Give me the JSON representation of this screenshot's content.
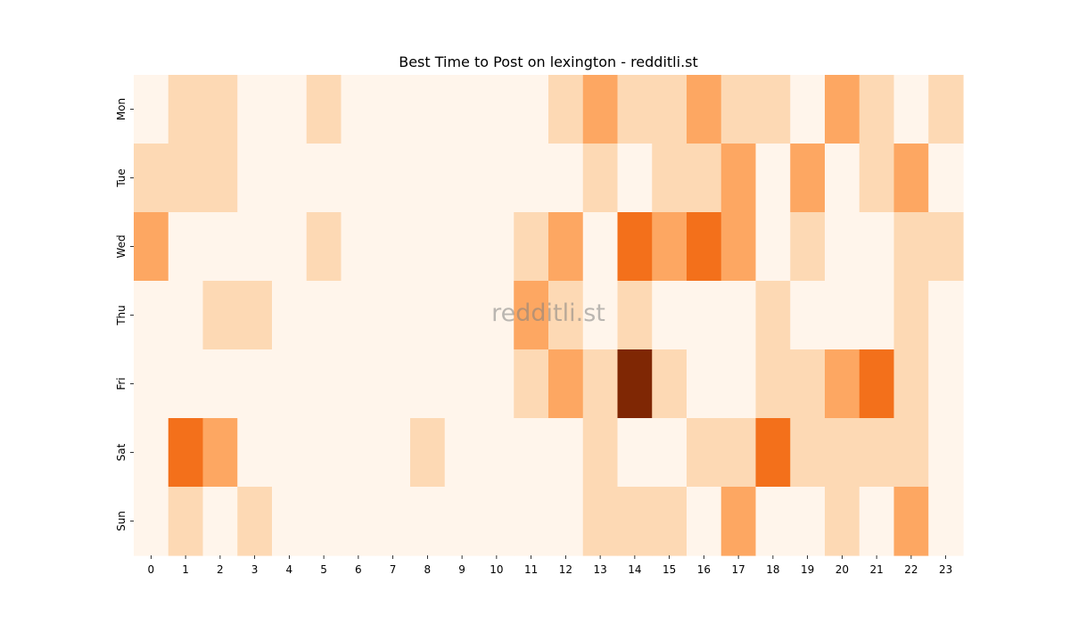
{
  "chart_data": {
    "type": "heatmap",
    "title": "Best Time to Post on lexington - redditli.st",
    "watermark": "redditli.st",
    "x_categories": [
      "0",
      "1",
      "2",
      "3",
      "4",
      "5",
      "6",
      "7",
      "8",
      "9",
      "10",
      "11",
      "12",
      "13",
      "14",
      "15",
      "16",
      "17",
      "18",
      "19",
      "20",
      "21",
      "22",
      "23"
    ],
    "y_categories": [
      "Mon",
      "Tue",
      "Wed",
      "Thu",
      "Fri",
      "Sat",
      "Sun"
    ],
    "values": [
      [
        0,
        1,
        1,
        0,
        0,
        1,
        0,
        0,
        0,
        0,
        0,
        0,
        1,
        2,
        1,
        1,
        2,
        1,
        1,
        0,
        2,
        1,
        0,
        1
      ],
      [
        1,
        1,
        1,
        0,
        0,
        0,
        0,
        0,
        0,
        0,
        0,
        0,
        0,
        1,
        0,
        1,
        1,
        2,
        0,
        2,
        0,
        1,
        2,
        0
      ],
      [
        2,
        0,
        0,
        0,
        0,
        1,
        0,
        0,
        0,
        0,
        0,
        1,
        2,
        0,
        3,
        2,
        3,
        2,
        0,
        1,
        0,
        0,
        1,
        1
      ],
      [
        0,
        0,
        1,
        1,
        0,
        0,
        0,
        0,
        0,
        0,
        0,
        2,
        1,
        0,
        1,
        0,
        0,
        0,
        1,
        0,
        0,
        0,
        1,
        0
      ],
      [
        0,
        0,
        0,
        0,
        0,
        0,
        0,
        0,
        0,
        0,
        0,
        1,
        2,
        1,
        5,
        1,
        0,
        0,
        1,
        1,
        2,
        3,
        1,
        0
      ],
      [
        0,
        3,
        2,
        0,
        0,
        0,
        0,
        0,
        1,
        0,
        0,
        0,
        0,
        1,
        0,
        0,
        1,
        1,
        3,
        1,
        1,
        1,
        1,
        0
      ],
      [
        0,
        1,
        0,
        1,
        0,
        0,
        0,
        0,
        0,
        0,
        0,
        0,
        0,
        1,
        1,
        1,
        0,
        2,
        0,
        0,
        1,
        0,
        2,
        0
      ]
    ],
    "value_range": [
      0,
      5
    ],
    "colormap": "Oranges",
    "colors": [
      "#fff5eb",
      "#fdd9b4",
      "#fda762",
      "#f3701b",
      "#c54102",
      "#7f2704"
    ],
    "grid": false,
    "legend": "none"
  }
}
